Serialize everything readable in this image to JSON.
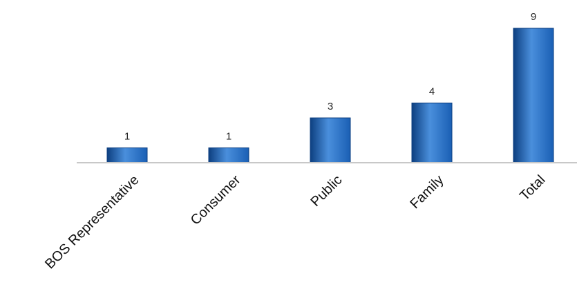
{
  "chart_data": {
    "type": "bar",
    "categories": [
      "BOS Representative",
      "Consumer",
      "Public",
      "Family",
      "Total"
    ],
    "values": [
      1,
      1,
      3,
      4,
      9
    ],
    "data_labels": [
      "1",
      "1",
      "3",
      "4",
      "9"
    ],
    "title": "",
    "xlabel": "",
    "ylabel": "",
    "ylim": [
      0,
      9
    ],
    "grid": false,
    "legend": "none",
    "bar_color": "#1a5fb4",
    "bar_color_light": "#4a8fdc",
    "bar_color_dark": "#0d3f80",
    "axis_color": "#c8c8c8"
  }
}
